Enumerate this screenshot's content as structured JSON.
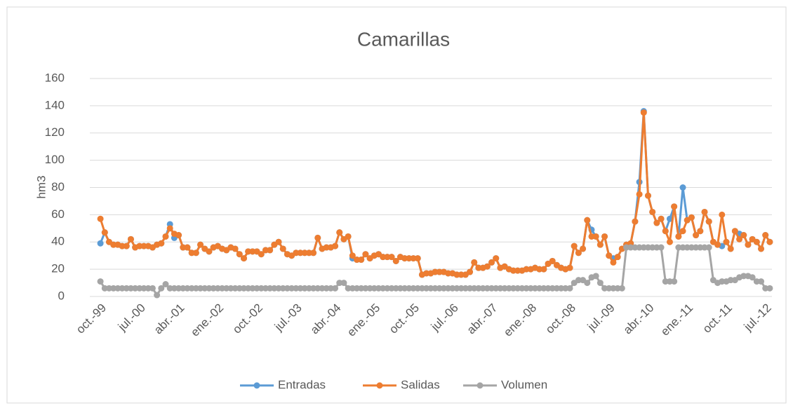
{
  "chart_data": {
    "type": "line",
    "title": "Camarillas",
    "y_label": "hm3",
    "categories": [
      "oct.-99",
      null,
      null,
      null,
      null,
      null,
      null,
      null,
      null,
      "jul.-00",
      null,
      null,
      null,
      null,
      null,
      null,
      null,
      null,
      "abr.-01",
      null,
      null,
      null,
      null,
      null,
      null,
      null,
      null,
      "ene.-02",
      null,
      null,
      null,
      null,
      null,
      null,
      null,
      null,
      "oct.-02",
      null,
      null,
      null,
      null,
      null,
      null,
      null,
      null,
      "jul.-03",
      null,
      null,
      null,
      null,
      null,
      null,
      null,
      null,
      "abr.-04",
      null,
      null,
      null,
      null,
      null,
      null,
      null,
      null,
      "ene.-05",
      null,
      null,
      null,
      null,
      null,
      null,
      null,
      null,
      "oct.-05",
      null,
      null,
      null,
      null,
      null,
      null,
      null,
      null,
      "jul.-06",
      null,
      null,
      null,
      null,
      null,
      null,
      null,
      null,
      "abr.-07",
      null,
      null,
      null,
      null,
      null,
      null,
      null,
      null,
      "ene.-08",
      null,
      null,
      null,
      null,
      null,
      null,
      null,
      null,
      "oct.-08",
      null,
      null,
      null,
      null,
      null,
      null,
      null,
      null,
      "jul.-09",
      null,
      null,
      null,
      null,
      null,
      null,
      null,
      null,
      "abr.-10",
      null,
      null,
      null,
      null,
      null,
      null,
      null,
      null,
      "ene.-11",
      null,
      null,
      null,
      null,
      null,
      null,
      null,
      null,
      "oct.-11",
      null,
      null,
      null,
      null,
      null,
      null,
      null,
      null,
      "jul.-12",
      null
    ],
    "series": [
      {
        "name": "Entradas",
        "color": "#5b9bd5",
        "values": [
          39,
          47,
          40,
          38,
          38,
          37,
          37,
          42,
          36,
          37,
          37,
          37,
          36,
          38,
          39,
          44,
          53,
          43,
          45,
          36,
          36,
          32,
          32,
          38,
          35,
          33,
          36,
          37,
          35,
          34,
          36,
          35,
          31,
          28,
          33,
          33,
          33,
          31,
          34,
          34,
          38,
          40,
          35,
          31,
          30,
          32,
          32,
          32,
          32,
          32,
          43,
          35,
          36,
          36,
          37,
          47,
          42,
          44,
          28,
          27,
          27,
          31,
          28,
          30,
          31,
          29,
          29,
          29,
          26,
          29,
          28,
          28,
          28,
          28,
          16,
          17,
          17,
          18,
          18,
          18,
          17,
          17,
          16,
          16,
          16,
          18,
          25,
          21,
          21,
          22,
          25,
          28,
          21,
          22,
          20,
          19,
          19,
          19,
          20,
          20,
          21,
          20,
          20,
          24,
          26,
          23,
          21,
          20,
          21,
          37,
          32,
          35,
          56,
          49,
          44,
          38,
          44,
          30,
          28,
          29,
          35,
          38,
          39,
          55,
          84,
          136,
          74,
          62,
          54,
          57,
          48,
          57,
          66,
          44,
          80,
          56,
          58,
          45,
          48,
          62,
          55,
          40,
          38,
          37,
          40,
          35,
          48,
          46,
          45,
          38,
          42,
          40,
          35,
          45,
          40
        ]
      },
      {
        "name": "Salidas",
        "color": "#ed7d31",
        "values": [
          57,
          47,
          40,
          38,
          38,
          37,
          37,
          42,
          36,
          37,
          37,
          37,
          36,
          38,
          39,
          44,
          50,
          46,
          45,
          36,
          36,
          32,
          32,
          38,
          35,
          33,
          36,
          37,
          35,
          34,
          36,
          35,
          31,
          28,
          33,
          33,
          33,
          31,
          34,
          34,
          38,
          40,
          35,
          31,
          30,
          32,
          32,
          32,
          32,
          32,
          43,
          35,
          36,
          36,
          37,
          47,
          42,
          44,
          30,
          27,
          27,
          31,
          28,
          30,
          31,
          29,
          29,
          29,
          26,
          29,
          28,
          28,
          28,
          28,
          16,
          17,
          17,
          18,
          18,
          18,
          17,
          17,
          16,
          16,
          16,
          18,
          25,
          21,
          21,
          22,
          25,
          28,
          21,
          22,
          20,
          19,
          19,
          19,
          20,
          20,
          21,
          20,
          20,
          24,
          26,
          23,
          21,
          20,
          21,
          37,
          32,
          35,
          56,
          44,
          44,
          38,
          44,
          30,
          25,
          29,
          35,
          38,
          39,
          55,
          75,
          135,
          74,
          62,
          54,
          57,
          48,
          40,
          66,
          44,
          48,
          56,
          58,
          45,
          48,
          62,
          55,
          40,
          38,
          60,
          40,
          35,
          48,
          42,
          45,
          38,
          42,
          40,
          35,
          45,
          40
        ]
      },
      {
        "name": "Volumen",
        "color": "#a5a5a5",
        "values": [
          11,
          6,
          6,
          6,
          6,
          6,
          6,
          6,
          6,
          6,
          6,
          6,
          6,
          1,
          6,
          9,
          6,
          6,
          6,
          6,
          6,
          6,
          6,
          6,
          6,
          6,
          6,
          6,
          6,
          6,
          6,
          6,
          6,
          6,
          6,
          6,
          6,
          6,
          6,
          6,
          6,
          6,
          6,
          6,
          6,
          6,
          6,
          6,
          6,
          6,
          6,
          6,
          6,
          6,
          6,
          10,
          10,
          6,
          6,
          6,
          6,
          6,
          6,
          6,
          6,
          6,
          6,
          6,
          6,
          6,
          6,
          6,
          6,
          6,
          6,
          6,
          6,
          6,
          6,
          6,
          6,
          6,
          6,
          6,
          6,
          6,
          6,
          6,
          6,
          6,
          6,
          6,
          6,
          6,
          6,
          6,
          6,
          6,
          6,
          6,
          6,
          6,
          6,
          6,
          6,
          6,
          6,
          6,
          6,
          10,
          12,
          12,
          10,
          14,
          15,
          10,
          6,
          6,
          6,
          6,
          6,
          36,
          36,
          36,
          36,
          36,
          36,
          36,
          36,
          36,
          11,
          11,
          11,
          36,
          36,
          36,
          36,
          36,
          36,
          36,
          36,
          12,
          10,
          11,
          11,
          12,
          12,
          14,
          15,
          15,
          14,
          11,
          11,
          6,
          6
        ]
      }
    ],
    "ylim": [
      0,
      160
    ],
    "yticks": [
      0,
      20,
      40,
      60,
      80,
      100,
      120,
      140,
      160
    ],
    "grid": true,
    "legend": "bottom"
  }
}
